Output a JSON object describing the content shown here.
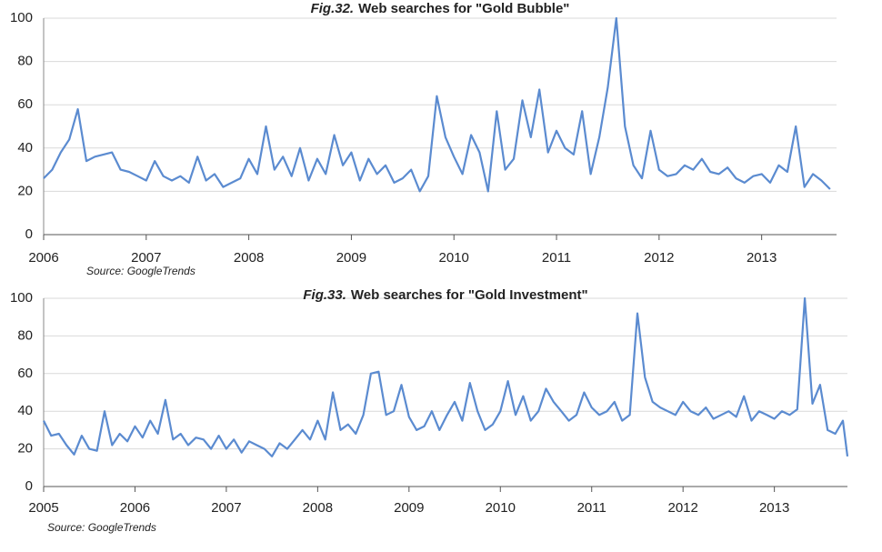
{
  "chart_data": [
    {
      "type": "line",
      "title_label": "Fig.32.",
      "title": "Web searches for \"Gold Bubble\"",
      "source": "Source: GoogleTrends",
      "color": "#5b8bd0",
      "grid": true,
      "xlim": [
        2006,
        2013.73
      ],
      "xticks": [
        2006,
        2007,
        2008,
        2009,
        2010,
        2011,
        2012,
        2013
      ],
      "ylim": [
        0,
        100
      ],
      "yticks": [
        0,
        20,
        40,
        60,
        80,
        100
      ],
      "x": [
        2006,
        2006.083,
        2006.167,
        2006.25,
        2006.333,
        2006.417,
        2006.5,
        2006.583,
        2006.667,
        2006.75,
        2006.833,
        2006.917,
        2007,
        2007.083,
        2007.167,
        2007.25,
        2007.333,
        2007.417,
        2007.5,
        2007.583,
        2007.667,
        2007.75,
        2007.833,
        2007.917,
        2008,
        2008.083,
        2008.167,
        2008.25,
        2008.333,
        2008.417,
        2008.5,
        2008.583,
        2008.667,
        2008.75,
        2008.833,
        2008.917,
        2009,
        2009.083,
        2009.167,
        2009.25,
        2009.333,
        2009.417,
        2009.5,
        2009.583,
        2009.667,
        2009.75,
        2009.833,
        2009.917,
        2010,
        2010.083,
        2010.167,
        2010.25,
        2010.333,
        2010.417,
        2010.5,
        2010.583,
        2010.667,
        2010.75,
        2010.833,
        2010.917,
        2011,
        2011.083,
        2011.167,
        2011.25,
        2011.333,
        2011.417,
        2011.5,
        2011.583,
        2011.667,
        2011.75,
        2011.833,
        2011.917,
        2012,
        2012.083,
        2012.167,
        2012.25,
        2012.333,
        2012.417,
        2012.5,
        2012.583,
        2012.667,
        2012.75,
        2012.833,
        2012.917,
        2013,
        2013.083,
        2013.167,
        2013.25,
        2013.333,
        2013.417,
        2013.5,
        2013.583,
        2013.667
      ],
      "values": [
        26,
        30,
        38,
        44,
        58,
        34,
        36,
        37,
        38,
        30,
        29,
        27,
        25,
        34,
        27,
        25,
        27,
        24,
        36,
        25,
        28,
        22,
        24,
        26,
        35,
        28,
        50,
        30,
        36,
        27,
        40,
        25,
        35,
        28,
        46,
        32,
        38,
        25,
        35,
        28,
        32,
        24,
        26,
        30,
        20,
        27,
        64,
        45,
        36,
        28,
        46,
        38,
        20,
        57,
        30,
        35,
        62,
        45,
        67,
        38,
        48,
        40,
        37,
        57,
        28,
        45,
        68,
        100,
        50,
        32,
        26,
        48,
        30,
        27,
        28,
        32,
        30,
        35,
        29,
        28,
        31,
        26,
        24,
        27,
        28,
        24,
        32,
        29,
        50,
        22,
        28,
        25,
        21
      ]
    },
    {
      "type": "line",
      "title_label": "Fig.33.",
      "title": "Web searches for \"Gold Investment\"",
      "source": "Source: GoogleTrends",
      "color": "#5b8bd0",
      "grid": true,
      "xlim": [
        2005,
        2013.8
      ],
      "xticks": [
        2005,
        2006,
        2007,
        2008,
        2009,
        2010,
        2011,
        2012,
        2013
      ],
      "ylim": [
        0,
        100
      ],
      "yticks": [
        0,
        20,
        40,
        60,
        80,
        100
      ],
      "x": [
        2005,
        2005.083,
        2005.167,
        2005.25,
        2005.333,
        2005.417,
        2005.5,
        2005.583,
        2005.667,
        2005.75,
        2005.833,
        2005.917,
        2006,
        2006.083,
        2006.167,
        2006.25,
        2006.333,
        2006.417,
        2006.5,
        2006.583,
        2006.667,
        2006.75,
        2006.833,
        2006.917,
        2007,
        2007.083,
        2007.167,
        2007.25,
        2007.333,
        2007.417,
        2007.5,
        2007.583,
        2007.667,
        2007.75,
        2007.833,
        2007.917,
        2008,
        2008.083,
        2008.167,
        2008.25,
        2008.333,
        2008.417,
        2008.5,
        2008.583,
        2008.667,
        2008.75,
        2008.833,
        2008.917,
        2009,
        2009.083,
        2009.167,
        2009.25,
        2009.333,
        2009.417,
        2009.5,
        2009.583,
        2009.667,
        2009.75,
        2009.833,
        2009.917,
        2010,
        2010.083,
        2010.167,
        2010.25,
        2010.333,
        2010.417,
        2010.5,
        2010.583,
        2010.667,
        2010.75,
        2010.833,
        2010.917,
        2011,
        2011.083,
        2011.167,
        2011.25,
        2011.333,
        2011.417,
        2011.5,
        2011.583,
        2011.667,
        2011.75,
        2011.833,
        2011.917,
        2012,
        2012.083,
        2012.167,
        2012.25,
        2012.333,
        2012.417,
        2012.5,
        2012.583,
        2012.667,
        2012.75,
        2012.833,
        2012.917,
        2013,
        2013.083,
        2013.167,
        2013.25,
        2013.333,
        2013.417,
        2013.5,
        2013.583,
        2013.667,
        2013.75,
        2013.8
      ],
      "values": [
        35,
        27,
        28,
        22,
        17,
        27,
        20,
        19,
        40,
        22,
        28,
        24,
        32,
        26,
        35,
        28,
        46,
        25,
        28,
        22,
        26,
        25,
        20,
        27,
        20,
        25,
        18,
        24,
        22,
        20,
        16,
        23,
        20,
        25,
        30,
        25,
        35,
        25,
        50,
        30,
        33,
        28,
        38,
        60,
        61,
        38,
        40,
        54,
        37,
        30,
        32,
        40,
        30,
        38,
        45,
        35,
        55,
        40,
        30,
        33,
        40,
        56,
        38,
        48,
        35,
        40,
        52,
        45,
        40,
        35,
        38,
        50,
        42,
        38,
        40,
        45,
        35,
        38,
        92,
        58,
        45,
        42,
        40,
        38,
        45,
        40,
        38,
        42,
        36,
        38,
        40,
        37,
        48,
        35,
        40,
        38,
        36,
        40,
        38,
        41,
        100,
        44,
        54,
        30,
        28,
        35,
        16
      ]
    }
  ]
}
